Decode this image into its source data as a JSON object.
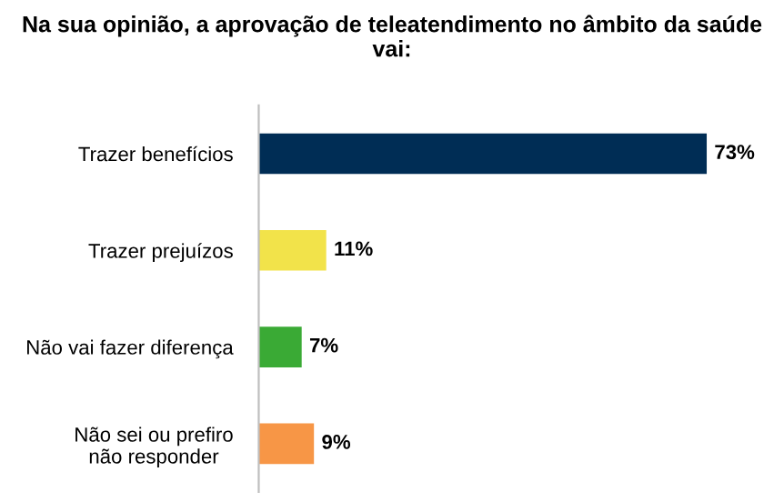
{
  "chart_data": {
    "type": "bar",
    "orientation": "horizontal",
    "title": "Na sua opinião, a aprovação de teleatendimento no âmbito da saúde vai:",
    "categories": [
      "Trazer benefícios",
      "Trazer prejuízos",
      "Não vai fazer diferença",
      "Não sei ou prefiro\nnão responder"
    ],
    "values": [
      73,
      11,
      7,
      9
    ],
    "colors": [
      "#002d55",
      "#f2e34a",
      "#3aaa35",
      "#f79646"
    ],
    "value_labels": [
      "73%",
      "11%",
      "7%",
      "9%"
    ],
    "grid": false,
    "legend": false
  }
}
